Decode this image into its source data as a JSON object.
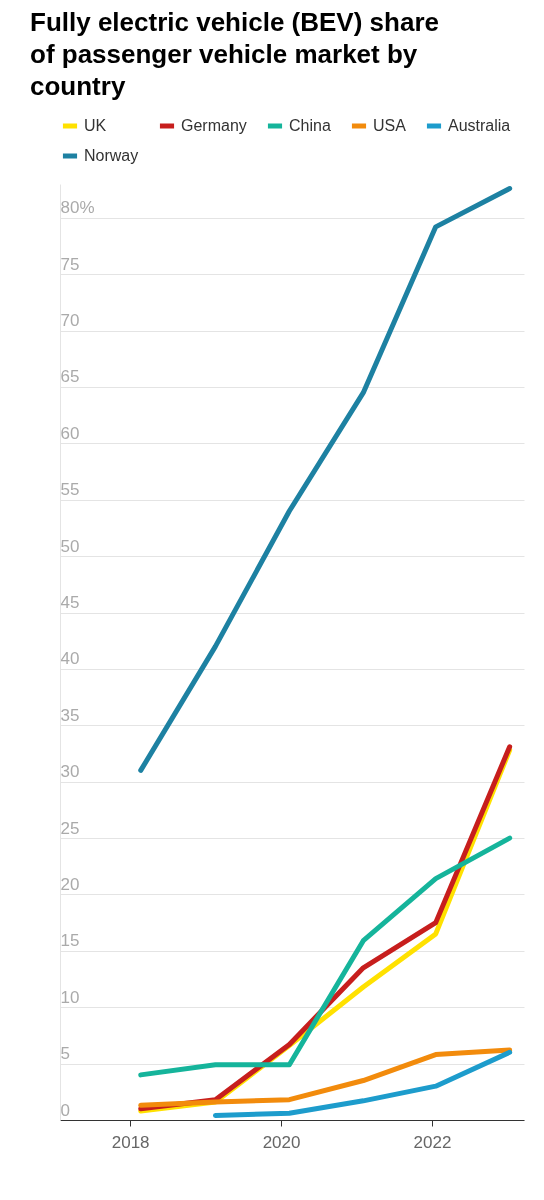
{
  "chart_data": {
    "type": "line",
    "title": "Fully electric vehicle (BEV) share of passenger vehicle market by country",
    "x": [
      2018.14,
      2019.13,
      2020.11,
      2021.09,
      2022.05,
      2023.03
    ],
    "xlim": [
      2017.07,
      2023.22
    ],
    "xticks": [
      2018,
      2020,
      2022
    ],
    "ylim": [
      0,
      83
    ],
    "yticks": [
      0,
      5,
      10,
      15,
      20,
      25,
      30,
      35,
      40,
      45,
      50,
      55,
      60,
      65,
      70,
      75,
      {
        "value": 80,
        "label": "80%"
      }
    ],
    "series": [
      {
        "name": "UK",
        "color": "#ffe100",
        "values": [
          0.8,
          1.6,
          6.6,
          11.8,
          16.5,
          32.8
        ]
      },
      {
        "name": "Germany",
        "color": "#c71e1d",
        "values": [
          1.0,
          1.8,
          6.7,
          13.5,
          17.5,
          33.1
        ]
      },
      {
        "name": "China",
        "color": "#15b49b",
        "values": [
          4.0,
          4.9,
          4.9,
          15.9,
          21.4,
          25.0
        ]
      },
      {
        "name": "USA",
        "color": "#f28b0c",
        "values": [
          1.3,
          1.6,
          1.8,
          3.5,
          5.8,
          6.2
        ]
      },
      {
        "name": "Australia",
        "color": "#1d9ccc",
        "values": [
          null,
          0.4,
          0.6,
          1.7,
          3.0,
          6.0
        ]
      },
      {
        "name": "Norway",
        "color": "#1d81a2",
        "values": [
          31.0,
          42.0,
          54.0,
          64.5,
          79.2,
          82.6
        ]
      }
    ],
    "legend": "top left",
    "grid": "y",
    "marker": "none",
    "line_style": "solid"
  }
}
